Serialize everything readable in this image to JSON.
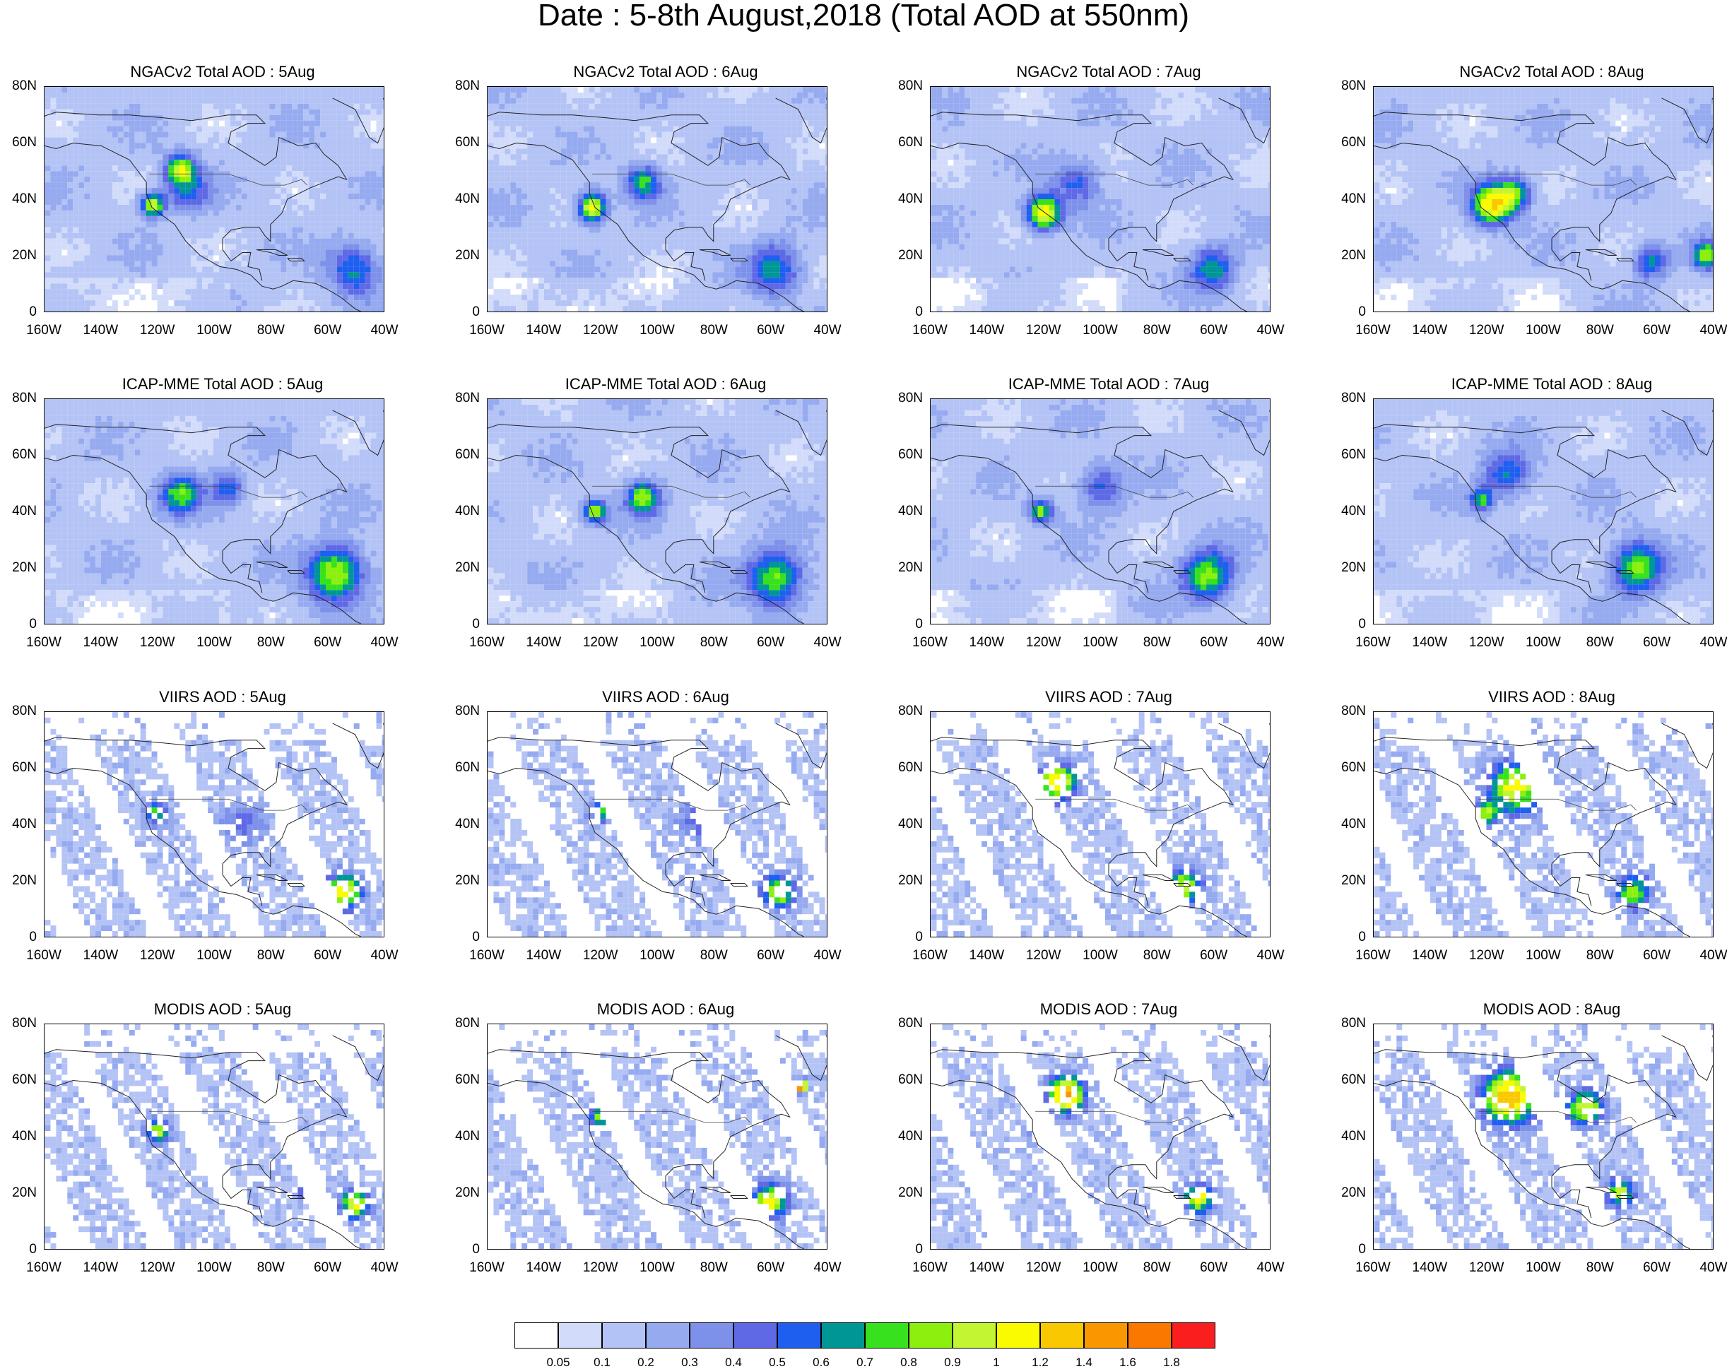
{
  "title": "Date : 5-8th August,2018 (Total AOD at 550nm)",
  "y_ticks": [
    "80N",
    "60N",
    "40N",
    "20N",
    "0"
  ],
  "x_ticks": [
    "160W",
    "140W",
    "120W",
    "100W",
    "80W",
    "60W",
    "40W"
  ],
  "map_extent": {
    "lon": [
      -160,
      -40
    ],
    "lat": [
      0,
      80
    ]
  },
  "rows": [
    {
      "product": "NGACv2 Total AOD",
      "style": "model",
      "titles": [
        "NGACv2 Total AOD : 5Aug",
        "NGACv2 Total AOD : 6Aug",
        "NGACv2 Total AOD : 7Aug",
        "NGACv2 Total AOD : 8Aug"
      ]
    },
    {
      "product": "ICAP-MME Total AOD",
      "style": "model",
      "titles": [
        "ICAP-MME Total AOD : 5Aug",
        "ICAP-MME Total AOD : 6Aug",
        "ICAP-MME Total AOD : 7Aug",
        "ICAP-MME Total AOD : 8Aug"
      ]
    },
    {
      "product": "VIIRS AOD",
      "style": "satellite",
      "titles": [
        "VIIRS AOD : 5Aug",
        "VIIRS AOD : 6Aug",
        "VIIRS AOD : 7Aug",
        "VIIRS AOD : 8Aug"
      ]
    },
    {
      "product": "MODIS AOD",
      "style": "satellite",
      "titles": [
        "MODIS AOD : 5Aug",
        "MODIS AOD : 6Aug",
        "MODIS AOD : 7Aug",
        "MODIS AOD : 8Aug"
      ]
    }
  ],
  "colorbar": {
    "levels": [
      "0.05",
      "0.1",
      "0.2",
      "0.3",
      "0.4",
      "0.5",
      "0.6",
      "0.7",
      "0.8",
      "0.9",
      "1",
      "1.2",
      "1.4",
      "1.6",
      "1.8"
    ],
    "colors": [
      "#ffffff",
      "#d2dcfa",
      "#b4c3f5",
      "#96aaf0",
      "#7d91eb",
      "#5f69e6",
      "#1e5ff0",
      "#009696",
      "#37e11e",
      "#8cf00f",
      "#c3f532",
      "#fafa00",
      "#fac800",
      "#fa9600",
      "#fa7800",
      "#fa1e1e"
    ]
  },
  "plumes": [
    [
      [
        {
          "lon": -122,
          "lat": 38,
          "r": 4,
          "v": 0.9
        },
        {
          "lon": -112,
          "lat": 51,
          "r": 5,
          "v": 0.7
        },
        {
          "lon": -110,
          "lat": 44,
          "r": 8,
          "v": 0.4
        },
        {
          "lon": -50,
          "lat": 15,
          "r": 9,
          "v": 0.5
        }
      ],
      [
        {
          "lon": -123,
          "lat": 37,
          "r": 5,
          "v": 1.0
        },
        {
          "lon": -105,
          "lat": 46,
          "r": 6,
          "v": 0.6
        },
        {
          "lon": -58,
          "lat": 15,
          "r": 9,
          "v": 0.5
        }
      ],
      [
        {
          "lon": -120,
          "lat": 35,
          "r": 6,
          "v": 1.0
        },
        {
          "lon": -108,
          "lat": 46,
          "r": 8,
          "v": 0.4
        },
        {
          "lon": -60,
          "lat": 15,
          "r": 8,
          "v": 0.5
        }
      ],
      [
        {
          "lon": -118,
          "lat": 38,
          "r": 7,
          "v": 1.0
        },
        {
          "lon": -110,
          "lat": 42,
          "r": 6,
          "v": 0.6
        },
        {
          "lon": -62,
          "lat": 18,
          "r": 6,
          "v": 0.5
        },
        {
          "lon": -42,
          "lat": 20,
          "r": 5,
          "v": 0.7
        }
      ]
    ],
    [
      [
        {
          "lon": -112,
          "lat": 46,
          "r": 7,
          "v": 0.6
        },
        {
          "lon": -57,
          "lat": 18,
          "r": 10,
          "v": 0.8
        },
        {
          "lon": -95,
          "lat": 48,
          "r": 6,
          "v": 0.4
        }
      ],
      [
        {
          "lon": -122,
          "lat": 40,
          "r": 4,
          "v": 0.8
        },
        {
          "lon": -105,
          "lat": 45,
          "r": 6,
          "v": 0.7
        },
        {
          "lon": -58,
          "lat": 16,
          "r": 10,
          "v": 0.7
        }
      ],
      [
        {
          "lon": -121,
          "lat": 40,
          "r": 4,
          "v": 0.7
        },
        {
          "lon": -100,
          "lat": 49,
          "r": 8,
          "v": 0.4
        },
        {
          "lon": -62,
          "lat": 17,
          "r": 9,
          "v": 0.7
        }
      ],
      [
        {
          "lon": -113,
          "lat": 53,
          "r": 8,
          "v": 0.5
        },
        {
          "lon": -122,
          "lat": 44,
          "r": 4,
          "v": 0.6
        },
        {
          "lon": -67,
          "lat": 20,
          "r": 9,
          "v": 0.7
        }
      ]
    ],
    [
      [
        {
          "lon": -120,
          "lat": 44,
          "r": 4,
          "v": 0.6
        },
        {
          "lon": -54,
          "lat": 16,
          "r": 6,
          "v": 1.0
        },
        {
          "lon": -90,
          "lat": 40,
          "r": 8,
          "v": 0.3
        }
      ],
      [
        {
          "lon": -120,
          "lat": 45,
          "r": 4,
          "v": 0.6
        },
        {
          "lon": -57,
          "lat": 16,
          "r": 6,
          "v": 0.8
        },
        {
          "lon": -85,
          "lat": 42,
          "r": 8,
          "v": 0.3
        }
      ],
      [
        {
          "lon": -115,
          "lat": 55,
          "r": 6,
          "v": 1.1
        },
        {
          "lon": -121,
          "lat": 43,
          "r": 3,
          "v": 0.7
        },
        {
          "lon": -70,
          "lat": 18,
          "r": 6,
          "v": 0.8
        }
      ],
      [
        {
          "lon": -110,
          "lat": 53,
          "r": 9,
          "v": 0.9
        },
        {
          "lon": -120,
          "lat": 44,
          "r": 4,
          "v": 0.7
        },
        {
          "lon": -68,
          "lat": 16,
          "r": 6,
          "v": 0.7
        }
      ]
    ],
    [
      [
        {
          "lon": -120,
          "lat": 42,
          "r": 4,
          "v": 0.8
        },
        {
          "lon": -50,
          "lat": 16,
          "r": 5,
          "v": 0.9
        },
        {
          "lon": -66,
          "lat": 20,
          "r": 3,
          "v": 1.2
        }
      ],
      [
        {
          "lon": -120,
          "lat": 47,
          "r": 4,
          "v": 0.7
        },
        {
          "lon": -60,
          "lat": 17,
          "r": 6,
          "v": 0.9
        },
        {
          "lon": -49,
          "lat": 58,
          "r": 2,
          "v": 1.8
        }
      ],
      [
        {
          "lon": -112,
          "lat": 55,
          "r": 6,
          "v": 1.3
        },
        {
          "lon": -121,
          "lat": 42,
          "r": 3,
          "v": 1.1
        },
        {
          "lon": -65,
          "lat": 18,
          "r": 5,
          "v": 0.9
        }
      ],
      [
        {
          "lon": -112,
          "lat": 54,
          "r": 9,
          "v": 1.2
        },
        {
          "lon": -73,
          "lat": 20,
          "r": 5,
          "v": 0.8
        },
        {
          "lon": -85,
          "lat": 50,
          "r": 6,
          "v": 0.9
        }
      ]
    ]
  ]
}
